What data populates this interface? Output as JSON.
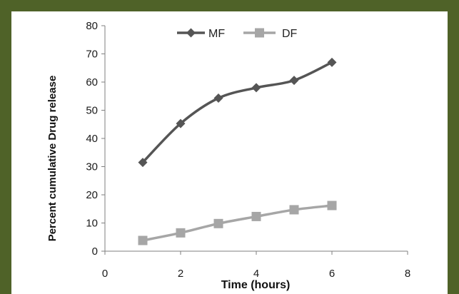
{
  "chart_data": {
    "type": "line",
    "xlabel": "Time (hours)",
    "ylabel": "Percent cumulative Drug release",
    "xlim": [
      0,
      8
    ],
    "ylim": [
      0,
      80
    ],
    "xticks": [
      0,
      2,
      4,
      6,
      8
    ],
    "yticks": [
      0,
      10,
      20,
      30,
      40,
      50,
      60,
      70,
      80
    ],
    "grid": false,
    "legend_position": "top",
    "series": [
      {
        "name": "MF",
        "color": "#555555",
        "marker": "diamond",
        "x": [
          1,
          2,
          3,
          4,
          5,
          6
        ],
        "values": [
          31.5,
          45.3,
          54.3,
          58.0,
          60.6,
          67.0
        ]
      },
      {
        "name": "DF",
        "color": "#a6a6a6",
        "marker": "square",
        "x": [
          1,
          2,
          3,
          4,
          5,
          6
        ],
        "values": [
          3.8,
          6.5,
          9.8,
          12.3,
          14.7,
          16.2
        ]
      }
    ]
  }
}
